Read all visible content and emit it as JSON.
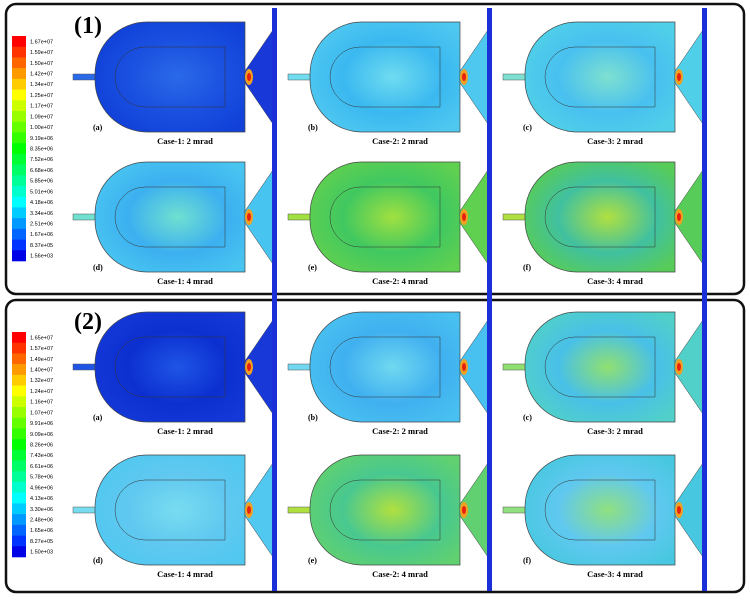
{
  "figures": [
    {
      "label": "(1)",
      "legend": [
        "1.67e+07",
        "1.59e+07",
        "1.50e+07",
        "1.42e+07",
        "1.34e+07",
        "1.25e+07",
        "1.17e+07",
        "1.09e+07",
        "1.00e+07",
        "9.19e+06",
        "8.35e+06",
        "7.52e+06",
        "6.68e+06",
        "5.85e+06",
        "5.01e+06",
        "4.18e+06",
        "3.34e+06",
        "2.51e+06",
        "1.67e+06",
        "8.37e+05",
        "1.56e+03"
      ],
      "panels": [
        {
          "tag": "(a)",
          "caption": "Case-1: 2 mrad"
        },
        {
          "tag": "(b)",
          "caption": "Case-2: 2 mrad"
        },
        {
          "tag": "(c)",
          "caption": "Case-3: 2 mrad"
        },
        {
          "tag": "(d)",
          "caption": "Case-1: 4 mrad"
        },
        {
          "tag": "(e)",
          "caption": "Case-2: 4 mrad"
        },
        {
          "tag": "(f)",
          "caption": "Case-3: 4 mrad"
        }
      ]
    },
    {
      "label": "(2)",
      "legend": [
        "1.65e+07",
        "1.57e+07",
        "1.49e+07",
        "1.40e+07",
        "1.32e+07",
        "1.24e+07",
        "1.16e+07",
        "1.07e+07",
        "9.91e+06",
        "9.09e+06",
        "8.26e+06",
        "7.43e+06",
        "6.61e+06",
        "5.78e+06",
        "4.96e+06",
        "4.13e+06",
        "3.30e+06",
        "2.48e+06",
        "1.65e+06",
        "8.27e+05",
        "1.50e+03"
      ],
      "panels": [
        {
          "tag": "(a)",
          "caption": "Case-1: 2 mrad"
        },
        {
          "tag": "(b)",
          "caption": "Case-2: 2 mrad"
        },
        {
          "tag": "(c)",
          "caption": "Case-3: 2 mrad"
        },
        {
          "tag": "(d)",
          "caption": "Case-1: 4 mrad"
        },
        {
          "tag": "(e)",
          "caption": "Case-2: 4 mrad"
        },
        {
          "tag": "(f)",
          "caption": "Case-3: 4 mrad"
        }
      ]
    }
  ]
}
